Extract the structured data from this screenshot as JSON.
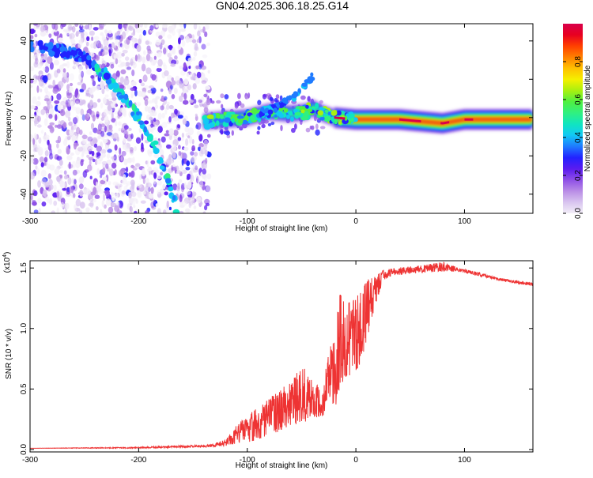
{
  "title": "GN04.2025.306.18.25.G14",
  "chart_data": [
    {
      "type": "heatmap",
      "xlabel": "Height of straight line (km)",
      "ylabel": "Frequency (Hz)",
      "xlim": [
        -300,
        163
      ],
      "ylim": [
        -50,
        49
      ],
      "xticks": [
        -300,
        -200,
        -100,
        0,
        100
      ],
      "yticks": [
        -40,
        -20,
        0,
        20,
        40
      ],
      "colorbar": {
        "label": "Normalized spectral amplitude",
        "range": [
          0.0,
          1.0
        ],
        "ticks": [
          0.0,
          0.2,
          0.4,
          0.6,
          0.8
        ],
        "colors": [
          "#f3eef8",
          "#d8c4ef",
          "#b98ce6",
          "#8e4fe6",
          "#5a1bf0",
          "#2222ff",
          "#1f7bff",
          "#12c8f5",
          "#10e5c0",
          "#30f080",
          "#50f040",
          "#a8f010",
          "#f5f000",
          "#ffc000",
          "#ff8000",
          "#ff4000",
          "#e80020",
          "#d8004a"
        ]
      },
      "features": [
        {
          "name": "diagonal-trace",
          "points": [
            [
              -300,
              38
            ],
            [
              -250,
              32
            ],
            [
              -230,
              22
            ],
            [
              -210,
              8
            ],
            [
              -200,
              0
            ],
            [
              -185,
              -15
            ],
            [
              -170,
              -38
            ],
            [
              -165,
              -48
            ]
          ]
        },
        {
          "name": "main-trace",
          "points": [
            [
              -140,
              -2
            ],
            [
              -100,
              0
            ],
            [
              -80,
              3
            ],
            [
              -60,
              2
            ],
            [
              -45,
              3
            ],
            [
              -40,
              5
            ],
            [
              -30,
              2
            ],
            [
              -20,
              0
            ],
            [
              0,
              -1
            ],
            [
              40,
              -1
            ],
            [
              80,
              -3
            ],
            [
              100,
              -1
            ],
            [
              163,
              -1
            ]
          ]
        },
        {
          "name": "upper-branch",
          "points": [
            [
              -90,
              2
            ],
            [
              -70,
              6
            ],
            [
              -55,
              12
            ],
            [
              -45,
              18
            ],
            [
              -40,
              22
            ]
          ]
        }
      ]
    },
    {
      "type": "line",
      "xlabel": "Height of straight line (km)",
      "ylabel": "SNR (10 * v/v)",
      "multiplier": "(x10",
      "multiplier_exp": "4",
      "multiplier_close": ")",
      "xlim": [
        -300,
        163
      ],
      "ylim": [
        -0.02,
        1.56
      ],
      "xticks": [
        -300,
        -200,
        -100,
        0,
        100
      ],
      "yticks": [
        0.0,
        0.5,
        1.0,
        1.5
      ],
      "ytick_labels": [
        "0.0",
        "0.5",
        "1.0",
        "1.5"
      ],
      "color": "#ee3333",
      "envelope": [
        [
          -300,
          0.01,
          0.01
        ],
        [
          -200,
          0.02,
          0.01
        ],
        [
          -135,
          0.04,
          0.02
        ],
        [
          -120,
          0.08,
          0.03
        ],
        [
          -110,
          0.2,
          0.05
        ],
        [
          -100,
          0.28,
          0.06
        ],
        [
          -90,
          0.35,
          0.08
        ],
        [
          -80,
          0.42,
          0.12
        ],
        [
          -70,
          0.5,
          0.15
        ],
        [
          -60,
          0.55,
          0.2
        ],
        [
          -50,
          0.72,
          0.22
        ],
        [
          -40,
          0.56,
          0.25
        ],
        [
          -30,
          0.5,
          0.28
        ],
        [
          -25,
          0.85,
          0.45
        ],
        [
          -20,
          0.9,
          0.3
        ],
        [
          -15,
          1.3,
          0.5
        ],
        [
          -10,
          1.25,
          0.6
        ],
        [
          -5,
          1.22,
          0.6
        ],
        [
          5,
          1.3,
          0.7
        ],
        [
          10,
          1.4,
          0.9
        ],
        [
          15,
          1.42,
          1.1
        ],
        [
          20,
          1.45,
          1.25
        ],
        [
          25,
          1.48,
          1.4
        ],
        [
          35,
          1.5,
          1.44
        ],
        [
          60,
          1.52,
          1.46
        ],
        [
          80,
          1.55,
          1.47
        ],
        [
          95,
          1.5,
          1.47
        ],
        [
          110,
          1.47,
          1.44
        ],
        [
          130,
          1.42,
          1.4
        ],
        [
          163,
          1.38,
          1.35
        ]
      ]
    }
  ]
}
